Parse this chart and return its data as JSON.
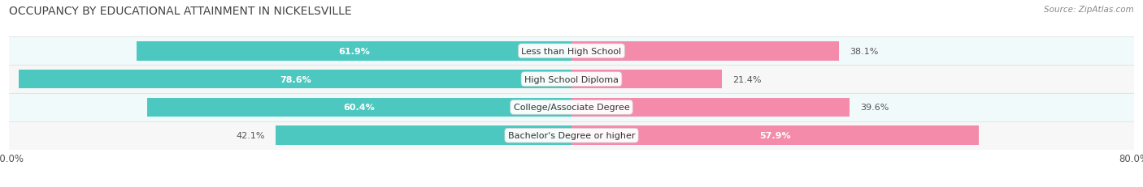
{
  "title": "OCCUPANCY BY EDUCATIONAL ATTAINMENT IN NICKELSVILLE",
  "source": "Source: ZipAtlas.com",
  "categories": [
    "Less than High School",
    "High School Diploma",
    "College/Associate Degree",
    "Bachelor's Degree or higher"
  ],
  "owner_values": [
    61.9,
    78.6,
    60.4,
    42.1
  ],
  "renter_values": [
    38.1,
    21.4,
    39.6,
    57.9
  ],
  "owner_color": "#4DC8C0",
  "renter_color": "#F48BAB",
  "bar_height": 0.68,
  "xlim": [
    -80,
    80
  ],
  "row_bg_colors": [
    "#f0fafa",
    "#f7f7f7"
  ],
  "label_fontsize": 8.0,
  "title_fontsize": 10.0,
  "source_fontsize": 7.5,
  "owner_label_inside_threshold": 50,
  "renter_label_inside_threshold": 50
}
